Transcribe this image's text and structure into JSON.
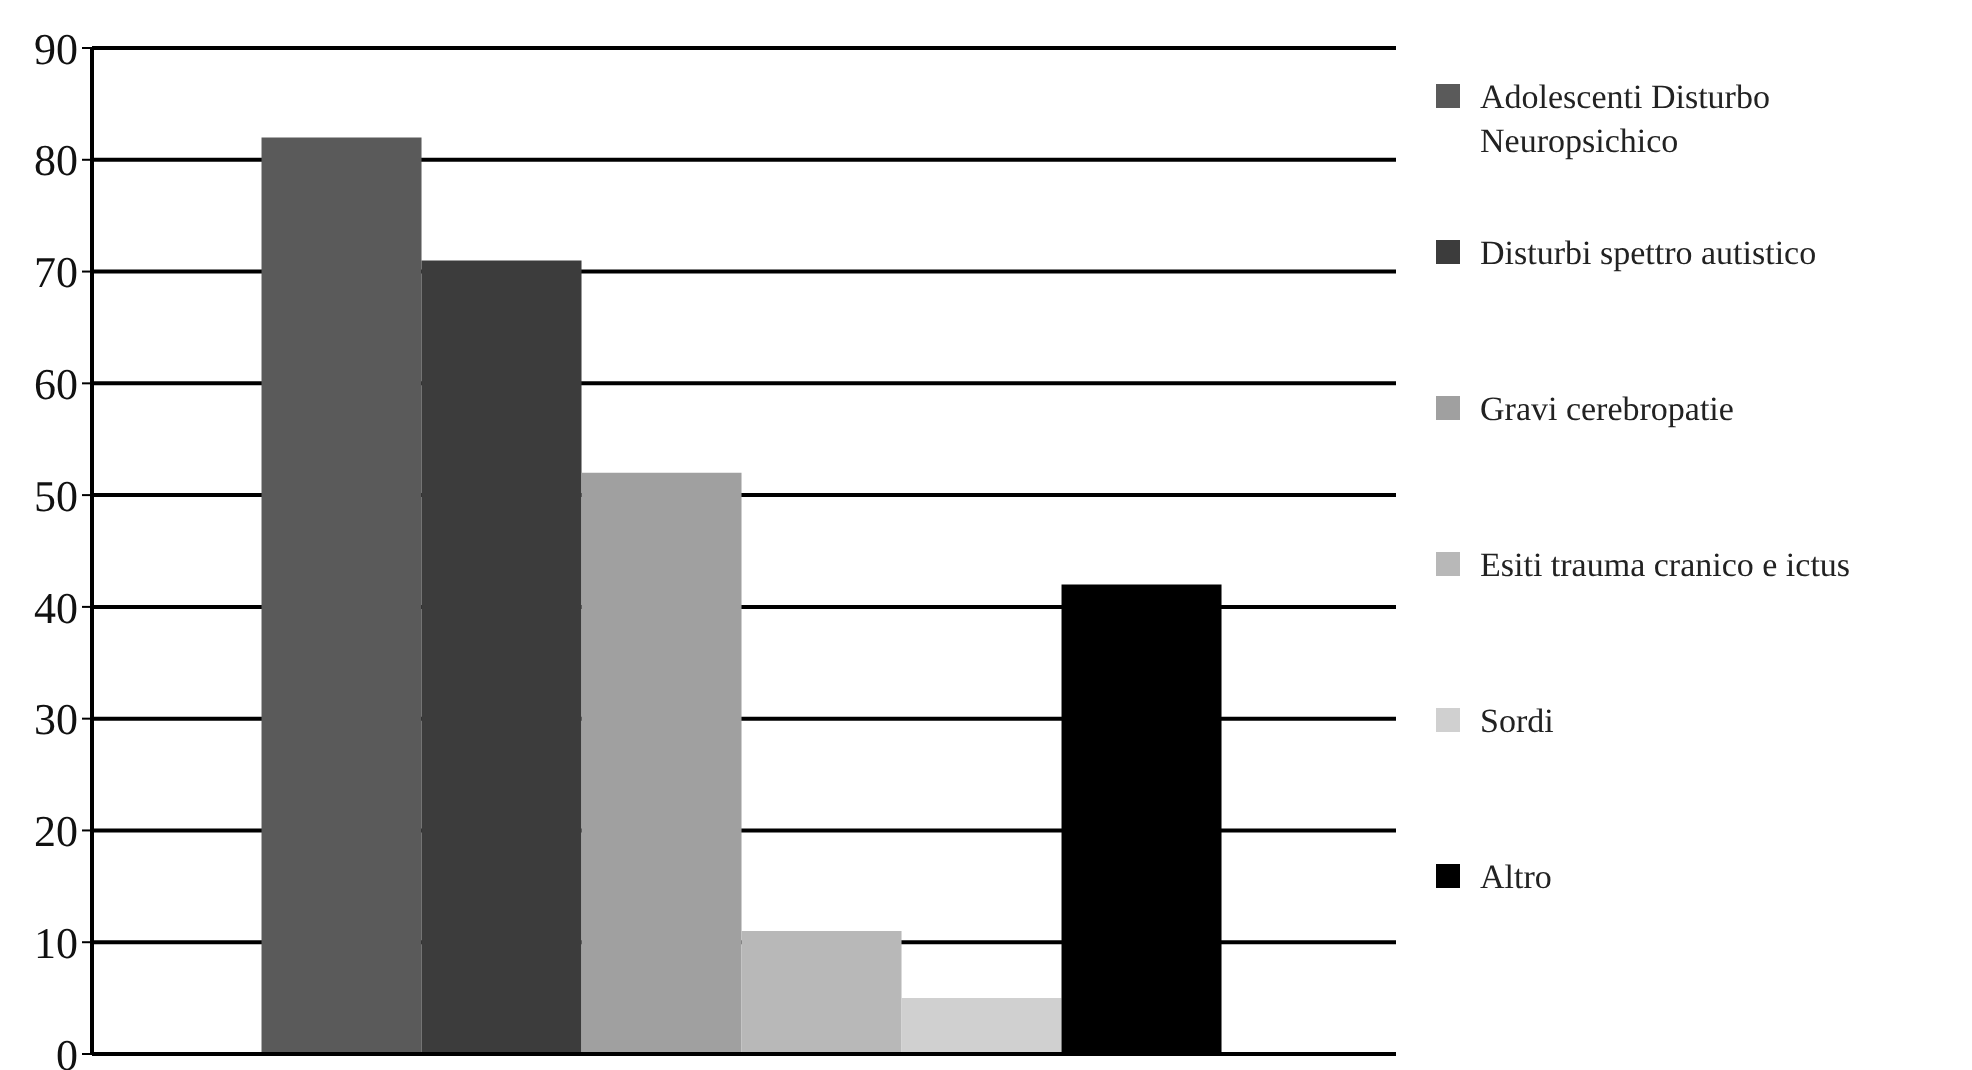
{
  "chart_data": {
    "type": "bar",
    "categories": [
      null
    ],
    "series": [
      {
        "name": "Adolescenti Disturbo Neuropsichico",
        "color": "#5a5a5a",
        "values": [
          82
        ]
      },
      {
        "name": "Disturbi spettro autistico",
        "color": "#3c3c3c",
        "values": [
          71
        ]
      },
      {
        "name": "Gravi cerebropatie",
        "color": "#a0a0a0",
        "values": [
          52
        ]
      },
      {
        "name": "Esiti trauma cranico e ictus",
        "color": "#b8b8b8",
        "values": [
          11
        ]
      },
      {
        "name": "Sordi",
        "color": "#d0d0d0",
        "values": [
          5
        ]
      },
      {
        "name": "Altro",
        "color": "#000000",
        "values": [
          42
        ]
      }
    ],
    "ylim": [
      0,
      90
    ],
    "yticks": [
      0,
      10,
      20,
      30,
      40,
      50,
      60,
      70,
      80,
      90
    ],
    "grid": "y",
    "legend": "right"
  }
}
